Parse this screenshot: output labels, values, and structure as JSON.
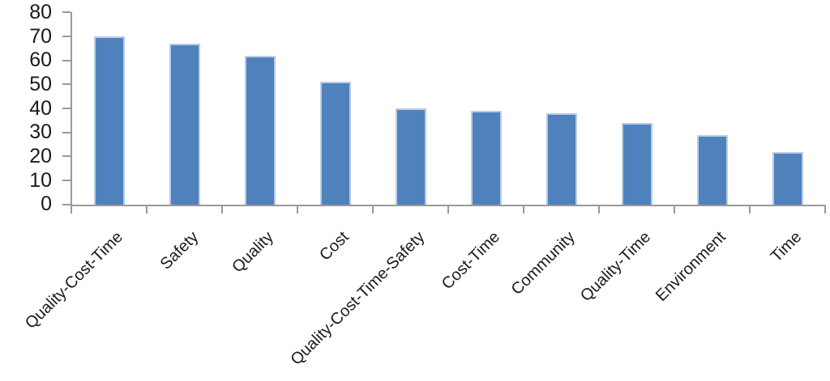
{
  "chart_data": {
    "type": "bar",
    "title": "",
    "categories": [
      "Quality-Cost-Time",
      "Safety",
      "Quality",
      "Cost",
      "Quality-Cost-Time-Safety",
      "Cost-Time",
      "Community",
      "Quality-Time",
      "Environment",
      "Time"
    ],
    "values": [
      70,
      67,
      62,
      51,
      40,
      39,
      38,
      34,
      29,
      22
    ],
    "xlabel": "",
    "ylabel": "",
    "ylim": [
      0,
      80
    ],
    "yticks": [
      0,
      10,
      20,
      30,
      40,
      50,
      60,
      70,
      80
    ],
    "grid": false,
    "legend": "none",
    "x_label_rotation_deg": 45,
    "colors": {
      "bar_fill": "#4F81BD",
      "bar_border": "#B8CCE4",
      "axis": "#9A9A9A",
      "text": "#1A1A1A"
    }
  }
}
